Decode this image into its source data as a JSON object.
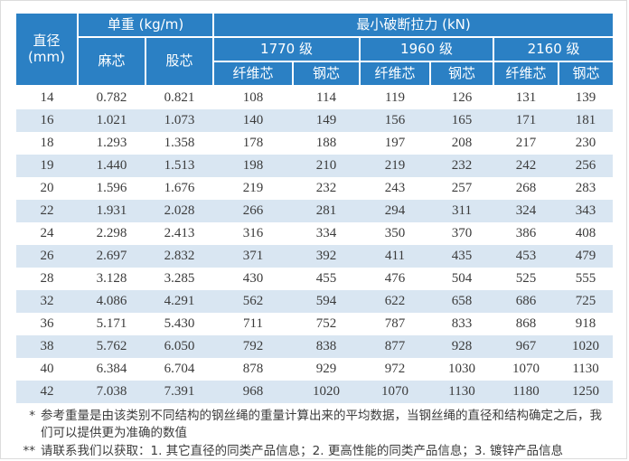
{
  "colors": {
    "header_blue": "#2b80c4",
    "stripe_blue": "#d9e6f2",
    "body_text": "#3b3b3b",
    "header_text": "#ffffff",
    "page_border": "#dcdcdc"
  },
  "table": {
    "header": {
      "diameter_line1": "直径",
      "diameter_line2": "(mm)",
      "unit_weight_group": "单重 (kg/m)",
      "breaking_force_group": "最小破断拉力 (kN)",
      "hemp_core": "麻芯",
      "strand_core": "股芯",
      "grades": [
        "1770 级",
        "1960 级",
        "2160 级"
      ],
      "fiber_core": "纤维芯",
      "steel_core": "钢芯"
    },
    "column_keys": [
      "diameter-mm",
      "hemp-core-kg-m",
      "strand-core-kg-m",
      "grade1770-fiber-core",
      "grade1770-steel-core",
      "grade1960-fiber-core",
      "grade1960-steel-core",
      "grade2160-fiber-core",
      "grade2160-steel-core"
    ],
    "rows": [
      [
        "14",
        "0.782",
        "0.821",
        "108",
        "114",
        "119",
        "126",
        "131",
        "139"
      ],
      [
        "16",
        "1.021",
        "1.073",
        "140",
        "149",
        "156",
        "165",
        "171",
        "181"
      ],
      [
        "18",
        "1.293",
        "1.358",
        "178",
        "188",
        "197",
        "208",
        "217",
        "230"
      ],
      [
        "19",
        "1.440",
        "1.513",
        "198",
        "210",
        "219",
        "232",
        "242",
        "256"
      ],
      [
        "20",
        "1.596",
        "1.676",
        "219",
        "232",
        "243",
        "257",
        "268",
        "283"
      ],
      [
        "22",
        "1.931",
        "2.028",
        "266",
        "281",
        "294",
        "311",
        "324",
        "343"
      ],
      [
        "24",
        "2.298",
        "2.413",
        "316",
        "334",
        "350",
        "370",
        "386",
        "408"
      ],
      [
        "26",
        "2.697",
        "2.832",
        "371",
        "392",
        "411",
        "435",
        "453",
        "479"
      ],
      [
        "28",
        "3.128",
        "3.285",
        "430",
        "455",
        "476",
        "504",
        "525",
        "555"
      ],
      [
        "32",
        "4.086",
        "4.291",
        "562",
        "594",
        "622",
        "658",
        "686",
        "725"
      ],
      [
        "36",
        "5.171",
        "5.430",
        "711",
        "752",
        "787",
        "833",
        "868",
        "918"
      ],
      [
        "38",
        "5.762",
        "6.050",
        "792",
        "838",
        "877",
        "928",
        "967",
        "1020"
      ],
      [
        "40",
        "6.384",
        "6.704",
        "878",
        "929",
        "972",
        "1030",
        "1070",
        "1130"
      ],
      [
        "42",
        "7.038",
        "7.391",
        "968",
        "1020",
        "1070",
        "1130",
        "1180",
        "1250"
      ]
    ]
  },
  "footnotes": [
    {
      "marker": "*",
      "text": "参考重量是由该类别不同结构的钢丝绳的重量计算出来的平均数据，当钢丝绳的直径和结构确定之后，我们可以提供更为准确的数值"
    },
    {
      "marker": "**",
      "text": "请联系我们以获取：1. 其它直径的同类产品信息；2. 更高性能的同类产品信息；3. 镀锌产品信息"
    }
  ]
}
